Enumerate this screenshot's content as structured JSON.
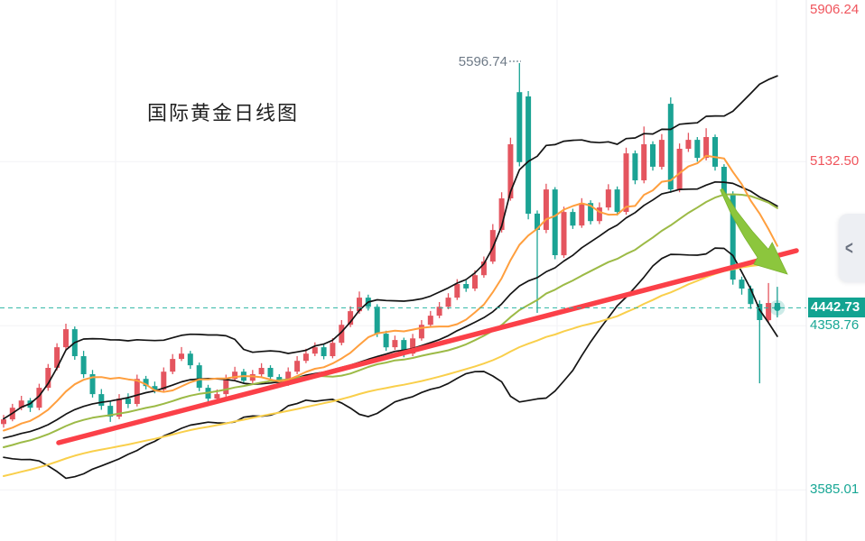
{
  "title": {
    "text": "国际黄金日线图"
  },
  "peak_label": {
    "text": "5596.74"
  },
  "axis": {
    "labels": [
      {
        "text": "5906.24",
        "price": 5906.24,
        "color": "#f0545c"
      },
      {
        "text": "5132.50",
        "price": 5132.5,
        "color": "#f0545c"
      },
      {
        "text": "4358.76",
        "price": 4358.76,
        "color": "#18a795"
      },
      {
        "text": "3585.01",
        "price": 3585.01,
        "color": "#18a795"
      }
    ],
    "current_price_badge": {
      "text": "4442.73",
      "price": 4442.73,
      "bg": "#12a391",
      "fg": "#ffffff"
    }
  },
  "side_tab": {
    "chevron": "<"
  },
  "colors": {
    "up_candle": "#e4555f",
    "down_candle": "#1ba394",
    "bollinger": "#141414",
    "ma_fast": "#ff9f3e",
    "ma_mid": "#9cba46",
    "ma_slow": "#f9cf4b",
    "trendline": "#fb4048",
    "arrow": "#8cc63d",
    "current_line": "#2ab5a2",
    "grid": "#f2f2f6",
    "axis_line": "#e9e9ee"
  },
  "chart_data": {
    "type": "candlestick",
    "title": "国际黄金日线图",
    "instrument": "国际黄金 (日线)",
    "peak_high": 5596.74,
    "last_close": 4442.73,
    "y_axis": {
      "p1": 5132.5,
      "y1": 179.2,
      "p2": 3585.01,
      "y2": 543.2,
      "ticks": [
        5906.24,
        5132.5,
        4358.76,
        3585.01
      ],
      "ylim": [
        3343,
        5894
      ]
    },
    "x_start": 4,
    "x_step": 9.85,
    "body_width": 6,
    "vertical_gridlines_x": [
      128,
      373,
      617,
      860
    ],
    "axis_separator_x": 893,
    "grid": true,
    "legend": "none",
    "ohlc": [
      [
        3895,
        3938,
        3878,
        3917
      ],
      [
        3917,
        3990,
        3908,
        3972
      ],
      [
        3972,
        4028,
        3960,
        4006
      ],
      [
        4006,
        4018,
        3952,
        3972
      ],
      [
        3972,
        4085,
        3960,
        4066
      ],
      [
        4066,
        4178,
        4052,
        4160
      ],
      [
        4160,
        4276,
        4148,
        4257
      ],
      [
        4257,
        4368,
        4246,
        4342
      ],
      [
        4342,
        4355,
        4198,
        4215
      ],
      [
        4215,
        4240,
        4112,
        4130
      ],
      [
        4130,
        4150,
        4020,
        4036
      ],
      [
        4036,
        4060,
        3962,
        3981
      ],
      [
        3981,
        4002,
        3905,
        3930
      ],
      [
        3930,
        4036,
        3918,
        4015
      ],
      [
        4015,
        4040,
        3970,
        3990
      ],
      [
        3990,
        4128,
        3978,
        4108
      ],
      [
        4108,
        4122,
        4058,
        4074
      ],
      [
        4074,
        4095,
        4040,
        4057
      ],
      [
        4057,
        4162,
        4045,
        4142
      ],
      [
        4142,
        4225,
        4130,
        4202
      ],
      [
        4202,
        4258,
        4192,
        4227
      ],
      [
        4227,
        4240,
        4155,
        4172
      ],
      [
        4172,
        4185,
        4050,
        4066
      ],
      [
        4066,
        4080,
        3998,
        4015
      ],
      [
        4015,
        4058,
        4002,
        4036
      ],
      [
        4036,
        4128,
        4024,
        4108
      ],
      [
        4108,
        4165,
        4096,
        4142
      ],
      [
        4142,
        4155,
        4085,
        4099
      ],
      [
        4099,
        4150,
        4088,
        4130
      ],
      [
        4130,
        4182,
        4118,
        4160
      ],
      [
        4160,
        4172,
        4102,
        4117
      ],
      [
        4117,
        4130,
        4070,
        4087
      ],
      [
        4087,
        4162,
        4075,
        4142
      ],
      [
        4142,
        4215,
        4130,
        4193
      ],
      [
        4193,
        4250,
        4182,
        4227
      ],
      [
        4227,
        4280,
        4215,
        4257
      ],
      [
        4257,
        4270,
        4200,
        4215
      ],
      [
        4215,
        4300,
        4205,
        4278
      ],
      [
        4278,
        4385,
        4266,
        4363
      ],
      [
        4363,
        4450,
        4352,
        4427
      ],
      [
        4427,
        4520,
        4415,
        4491
      ],
      [
        4491,
        4505,
        4430,
        4448
      ],
      [
        4448,
        4460,
        4305,
        4321
      ],
      [
        4321,
        4335,
        4240,
        4257
      ],
      [
        4257,
        4312,
        4245,
        4291
      ],
      [
        4291,
        4302,
        4210,
        4227
      ],
      [
        4227,
        4320,
        4215,
        4299
      ],
      [
        4299,
        4385,
        4288,
        4363
      ],
      [
        4363,
        4428,
        4350,
        4406
      ],
      [
        4406,
        4470,
        4394,
        4448
      ],
      [
        4448,
        4512,
        4436,
        4491
      ],
      [
        4491,
        4578,
        4480,
        4555
      ],
      [
        4555,
        4572,
        4518,
        4534
      ],
      [
        4534,
        4620,
        4522,
        4597
      ],
      [
        4597,
        4685,
        4585,
        4661
      ],
      [
        4661,
        4838,
        4650,
        4810
      ],
      [
        4810,
        4988,
        4798,
        4959
      ],
      [
        4959,
        5245,
        4948,
        5214
      ],
      [
        5460,
        5596.74,
        5110,
        5130
      ],
      [
        5440,
        5465,
        4860,
        4887
      ],
      [
        4887,
        4902,
        4419,
        4810
      ],
      [
        4810,
        5028,
        4795,
        5001
      ],
      [
        5001,
        5012,
        4672,
        4691
      ],
      [
        4691,
        4920,
        4678,
        4895
      ],
      [
        4895,
        4910,
        4815,
        4831
      ],
      [
        4831,
        4960,
        4820,
        4937
      ],
      [
        4937,
        4950,
        4836,
        4852
      ],
      [
        4852,
        4940,
        4838,
        4916
      ],
      [
        4916,
        5026,
        4902,
        5001
      ],
      [
        5001,
        5015,
        4878,
        4895
      ],
      [
        4895,
        5198,
        4882,
        5171
      ],
      [
        5171,
        5185,
        5026,
        5044
      ],
      [
        5044,
        5298,
        5030,
        5214
      ],
      [
        5214,
        5228,
        5090,
        5108
      ],
      [
        5108,
        5262,
        5095,
        5235
      ],
      [
        5405,
        5435,
        4985,
        5001
      ],
      [
        5001,
        5218,
        4988,
        5193
      ],
      [
        5193,
        5268,
        5178,
        5235
      ],
      [
        5235,
        5248,
        5132,
        5150
      ],
      [
        5150,
        5290,
        5138,
        5248
      ],
      [
        5248,
        5260,
        5090,
        5108
      ],
      [
        5108,
        5120,
        4962,
        4980
      ],
      [
        4980,
        4992,
        4552,
        4576
      ],
      [
        4576,
        4590,
        4505,
        4534
      ],
      [
        4534,
        4548,
        4438,
        4461
      ],
      [
        4461,
        4478,
        4087,
        4385
      ],
      [
        4385,
        4560,
        4370,
        4466
      ],
      [
        4466,
        4542,
        4398,
        4442.73
      ]
    ],
    "overlays": {
      "bollinger": {
        "window": 20,
        "k": 2,
        "color": "#141414",
        "width": 1.7
      },
      "moving_averages": [
        {
          "window": 10,
          "color": "#ff9f3e",
          "width": 2
        },
        {
          "window": 30,
          "color": "#9cba46",
          "width": 2
        },
        {
          "window": 60,
          "color": "#f9cf4b",
          "width": 2
        }
      ]
    },
    "annotations": {
      "trendline": {
        "x1": 65,
        "y1": 491,
        "x2": 882,
        "y2": 278,
        "color": "#fb4048",
        "width": 5.5
      },
      "down_arrow": {
        "points": [
          [
            799,
            210
          ],
          [
            813,
            236
          ],
          [
            829,
            260
          ],
          [
            845,
            281
          ]
        ],
        "tip": [
          872,
          304
        ],
        "color": "#8cc63d"
      },
      "current_price_line": {
        "price": 4442.73,
        "style": "dashed",
        "color": "#2ab5a2"
      },
      "peak_callout": {
        "text": "5596.74",
        "price": 5596.74
      }
    }
  }
}
